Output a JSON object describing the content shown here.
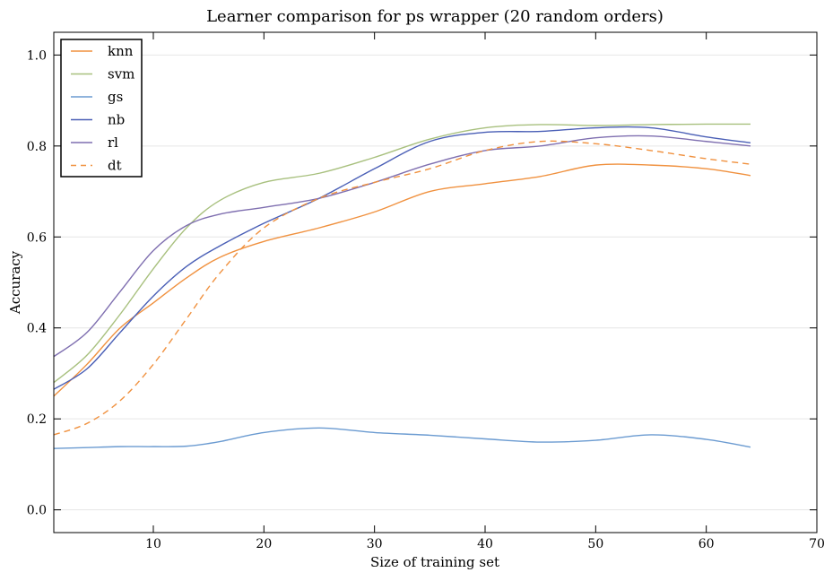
{
  "chart_data": {
    "type": "line",
    "title": "Learner comparison for ps wrapper (20 random orders)",
    "xlabel": "Size of training set",
    "ylabel": "Accuracy",
    "xlim": [
      1,
      70
    ],
    "ylim": [
      -0.05,
      1.05
    ],
    "xticks": [
      10,
      20,
      30,
      40,
      50,
      60,
      70
    ],
    "yticks": [
      0.0,
      0.2,
      0.4,
      0.6,
      0.8,
      1.0
    ],
    "grid": "horizontal",
    "legend_position": "top-left",
    "x": [
      1,
      4,
      7,
      10,
      13,
      16,
      20,
      25,
      30,
      35,
      40,
      45,
      50,
      55,
      60,
      64
    ],
    "series": [
      {
        "name": "knn",
        "color": "#f0913f",
        "dash": false,
        "values": [
          0.25,
          0.32,
          0.4,
          0.455,
          0.51,
          0.555,
          0.59,
          0.62,
          0.655,
          0.7,
          0.717,
          0.733,
          0.758,
          0.758,
          0.75,
          0.735
        ]
      },
      {
        "name": "svm",
        "color": "#a8c07e",
        "dash": false,
        "values": [
          0.28,
          0.34,
          0.43,
          0.53,
          0.62,
          0.68,
          0.72,
          0.74,
          0.775,
          0.815,
          0.84,
          0.847,
          0.845,
          0.847,
          0.848,
          0.848
        ]
      },
      {
        "name": "gs",
        "color": "#6b9bd1",
        "dash": false,
        "values": [
          0.135,
          0.137,
          0.139,
          0.139,
          0.14,
          0.15,
          0.17,
          0.18,
          0.17,
          0.164,
          0.156,
          0.149,
          0.153,
          0.165,
          0.155,
          0.138
        ]
      },
      {
        "name": "nb",
        "color": "#4a5fb6",
        "dash": false,
        "values": [
          0.265,
          0.31,
          0.39,
          0.47,
          0.535,
          0.58,
          0.63,
          0.685,
          0.75,
          0.81,
          0.83,
          0.832,
          0.84,
          0.84,
          0.82,
          0.807
        ]
      },
      {
        "name": "rl",
        "color": "#7f6fb0",
        "dash": false,
        "values": [
          0.337,
          0.39,
          0.48,
          0.57,
          0.625,
          0.65,
          0.665,
          0.685,
          0.72,
          0.76,
          0.79,
          0.8,
          0.818,
          0.822,
          0.81,
          0.8
        ]
      },
      {
        "name": "dt",
        "color": "#f0913f",
        "dash": true,
        "values": [
          0.165,
          0.19,
          0.24,
          0.32,
          0.42,
          0.52,
          0.62,
          0.685,
          0.72,
          0.75,
          0.79,
          0.81,
          0.805,
          0.79,
          0.772,
          0.76
        ]
      }
    ]
  }
}
